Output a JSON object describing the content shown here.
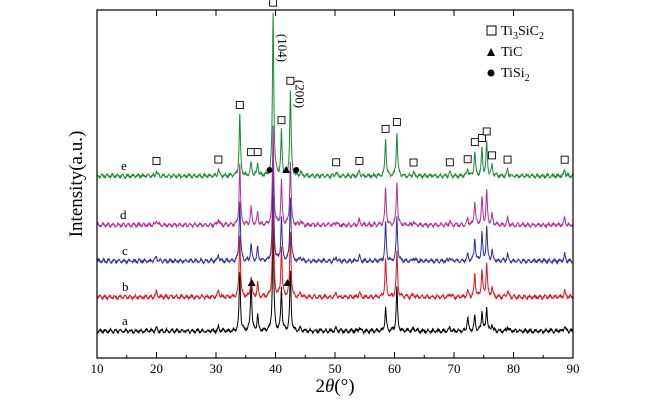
{
  "chart_data": {
    "type": "line",
    "title": "",
    "xlabel": "2θ(°)",
    "ylabel": "Intensity(a.u.)",
    "xlim": [
      10,
      90
    ],
    "x_ticks": [
      10,
      20,
      30,
      40,
      50,
      60,
      70,
      80,
      90
    ],
    "grid": false,
    "legend_position": "top-right",
    "series": [
      {
        "name": "a",
        "color": "#000000",
        "peaks": [
          [
            20.0,
            0.05
          ],
          [
            30.4,
            0.06
          ],
          [
            34.0,
            0.85
          ],
          [
            35.9,
            0.75
          ],
          [
            37.0,
            0.25
          ],
          [
            39.6,
            1.55
          ],
          [
            41.0,
            0.65
          ],
          [
            42.5,
            0.85
          ],
          [
            44.2,
            0.04
          ],
          [
            50.2,
            0.04
          ],
          [
            54.1,
            0.05
          ],
          [
            58.5,
            0.35
          ],
          [
            60.4,
            0.65
          ],
          [
            63.2,
            0.05
          ],
          [
            69.3,
            0.06
          ],
          [
            72.3,
            0.2
          ],
          [
            73.5,
            0.22
          ],
          [
            74.7,
            0.3
          ],
          [
            75.5,
            0.35
          ],
          [
            76.4,
            0.1
          ],
          [
            79.0,
            0.08
          ],
          [
            88.6,
            0.08
          ]
        ]
      },
      {
        "name": "b",
        "color": "#e0141e",
        "peaks": [
          [
            20.0,
            0.08
          ],
          [
            30.4,
            0.1
          ],
          [
            34.0,
            0.9
          ],
          [
            35.9,
            0.3
          ],
          [
            37.0,
            0.2
          ],
          [
            39.6,
            1.5
          ],
          [
            41.0,
            0.75
          ],
          [
            42.5,
            0.95
          ],
          [
            44.2,
            0.06
          ],
          [
            50.2,
            0.06
          ],
          [
            54.1,
            0.08
          ],
          [
            58.5,
            0.55
          ],
          [
            60.4,
            0.65
          ],
          [
            63.2,
            0.05
          ],
          [
            69.3,
            0.06
          ],
          [
            72.3,
            0.1
          ],
          [
            73.5,
            0.35
          ],
          [
            74.7,
            0.4
          ],
          [
            75.5,
            0.5
          ],
          [
            76.4,
            0.15
          ],
          [
            79.0,
            0.1
          ],
          [
            88.6,
            0.1
          ]
        ]
      },
      {
        "name": "c",
        "color": "#2f2fa2",
        "peaks": [
          [
            20.0,
            0.08
          ],
          [
            30.4,
            0.1
          ],
          [
            34.0,
            0.9
          ],
          [
            35.9,
            0.25
          ],
          [
            37.0,
            0.2
          ],
          [
            39.6,
            1.45
          ],
          [
            41.0,
            0.65
          ],
          [
            42.5,
            0.95
          ],
          [
            44.2,
            0.06
          ],
          [
            50.2,
            0.06
          ],
          [
            54.1,
            0.08
          ],
          [
            58.5,
            0.55
          ],
          [
            60.4,
            0.65
          ],
          [
            63.2,
            0.05
          ],
          [
            69.3,
            0.06
          ],
          [
            72.3,
            0.1
          ],
          [
            73.5,
            0.35
          ],
          [
            74.7,
            0.4
          ],
          [
            75.5,
            0.5
          ],
          [
            76.4,
            0.15
          ],
          [
            79.0,
            0.1
          ],
          [
            88.6,
            0.1
          ]
        ]
      },
      {
        "name": "d",
        "color": "#b22f9a",
        "peaks": [
          [
            20.0,
            0.08
          ],
          [
            30.4,
            0.1
          ],
          [
            34.0,
            0.9
          ],
          [
            35.9,
            0.25
          ],
          [
            37.0,
            0.2
          ],
          [
            39.6,
            1.45
          ],
          [
            41.0,
            0.65
          ],
          [
            42.5,
            0.95
          ],
          [
            44.2,
            0.06
          ],
          [
            50.2,
            0.06
          ],
          [
            54.1,
            0.08
          ],
          [
            58.5,
            0.55
          ],
          [
            60.4,
            0.65
          ],
          [
            63.2,
            0.05
          ],
          [
            69.3,
            0.06
          ],
          [
            72.3,
            0.1
          ],
          [
            73.5,
            0.35
          ],
          [
            74.7,
            0.4
          ],
          [
            75.5,
            0.5
          ],
          [
            76.4,
            0.15
          ],
          [
            79.0,
            0.1
          ],
          [
            88.6,
            0.1
          ]
        ]
      },
      {
        "name": "e",
        "color": "#1a8a3a",
        "peaks": [
          [
            20.0,
            0.08
          ],
          [
            30.4,
            0.1
          ],
          [
            34.0,
            0.9
          ],
          [
            35.9,
            0.2
          ],
          [
            37.0,
            0.2
          ],
          [
            39.6,
            2.4
          ],
          [
            41.0,
            0.65
          ],
          [
            42.5,
            1.25
          ],
          [
            44.2,
            0.06
          ],
          [
            50.2,
            0.06
          ],
          [
            54.1,
            0.08
          ],
          [
            58.5,
            0.55
          ],
          [
            60.4,
            0.65
          ],
          [
            63.2,
            0.05
          ],
          [
            69.3,
            0.06
          ],
          [
            72.3,
            0.1
          ],
          [
            73.5,
            0.35
          ],
          [
            74.7,
            0.4
          ],
          [
            75.5,
            0.5
          ],
          [
            76.4,
            0.15
          ],
          [
            79.0,
            0.1
          ],
          [
            88.6,
            0.1
          ]
        ]
      }
    ],
    "legend": [
      {
        "marker": "square-open",
        "label": "Ti",
        "sub1": "3",
        "mid": "SiC",
        "sub2": "2"
      },
      {
        "marker": "triangle-filled",
        "label": "TiC"
      },
      {
        "marker": "circle-filled",
        "label": "TiSi",
        "sub1": "2"
      }
    ],
    "peak_labels": [
      {
        "text": "(104)",
        "x": 39.6
      },
      {
        "text": "(200)",
        "x": 42.5
      }
    ],
    "annotations": {
      "square_markers_x": [
        20.0,
        30.4,
        34.0,
        35.9,
        37.0,
        39.6,
        41.0,
        42.5,
        50.2,
        54.1,
        58.5,
        60.4,
        63.2,
        69.3,
        72.3,
        73.5,
        74.7,
        75.5,
        76.4,
        79.0,
        88.6
      ],
      "circle_markers_x": [
        39.0,
        43.5
      ],
      "triangle_markers_e_x": [
        41.8
      ],
      "triangle_markers_b_x": [
        36.0,
        42.0
      ]
    }
  }
}
